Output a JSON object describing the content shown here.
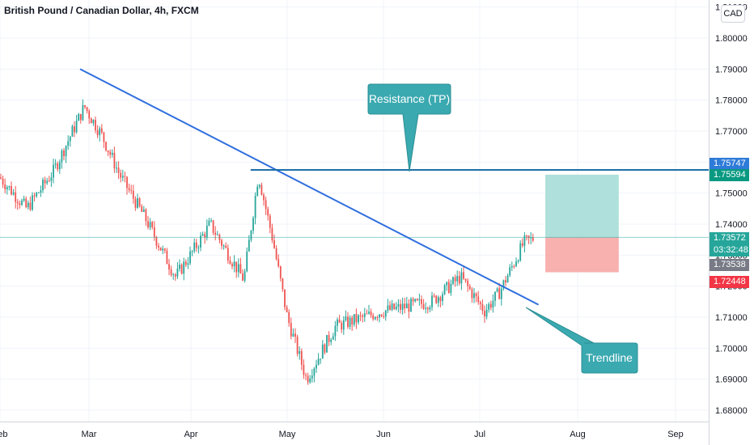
{
  "title": "British Pound / Canadian Dollar, 4h, FXCM",
  "currency": "CAD",
  "chart_data": {
    "type": "candlestick",
    "symbol": "British Pound / Canadian Dollar",
    "interval": "4h",
    "source": "FXCM",
    "y_ticks": [
      "1.68000",
      "1.69000",
      "1.70000",
      "1.71000",
      "1.72000",
      "1.73000",
      "1.74000",
      "1.75000",
      "1.76000",
      "1.77000",
      "1.78000",
      "1.79000",
      "1.80000",
      "1.81000"
    ],
    "x_ticks": [
      "Feb",
      "Mar",
      "Apr",
      "May",
      "Jun",
      "Jul",
      "Aug",
      "Sep"
    ],
    "ylim": [
      1.678,
      1.812
    ],
    "price_path": [
      {
        "x": 0.0,
        "y": 1.755
      },
      {
        "x": 0.3,
        "y": 1.745
      },
      {
        "x": 0.6,
        "y": 1.757
      },
      {
        "x": 0.95,
        "y": 1.778
      },
      {
        "x": 1.12,
        "y": 1.769
      },
      {
        "x": 1.3,
        "y": 1.756
      },
      {
        "x": 1.55,
        "y": 1.742
      },
      {
        "x": 1.85,
        "y": 1.723
      },
      {
        "x": 2.2,
        "y": 1.74
      },
      {
        "x": 2.55,
        "y": 1.722
      },
      {
        "x": 2.7,
        "y": 1.756
      },
      {
        "x": 2.85,
        "y": 1.735
      },
      {
        "x": 3.0,
        "y": 1.71
      },
      {
        "x": 3.2,
        "y": 1.69
      },
      {
        "x": 3.5,
        "y": 1.707
      },
      {
        "x": 4.0,
        "y": 1.712
      },
      {
        "x": 4.5,
        "y": 1.715
      },
      {
        "x": 4.8,
        "y": 1.723
      },
      {
        "x": 5.05,
        "y": 1.712
      },
      {
        "x": 5.2,
        "y": 1.718
      },
      {
        "x": 5.45,
        "y": 1.734
      },
      {
        "x": 5.55,
        "y": 1.7354
      }
    ],
    "trendline": {
      "label": "Trendline",
      "from": {
        "x": 0.9,
        "y": 1.79
      },
      "to": {
        "x": 5.6,
        "y": 1.714
      }
    },
    "resistance": {
      "label": "Resistance (TP)",
      "y": 1.75747
    },
    "position": {
      "entry": 1.73572,
      "target": 1.75594,
      "stop": 1.72448
    },
    "price_labels": [
      {
        "value": "1.75747",
        "color": "#2f7bd8"
      },
      {
        "value": "1.75594",
        "color": "#089981"
      },
      {
        "value": "1.73572",
        "color": "#26a69a"
      },
      {
        "value": "03:32:48",
        "color": "#26a69a"
      },
      {
        "value": "1.73538",
        "color": "#787b86"
      },
      {
        "value": "1.72448",
        "color": "#f23645"
      }
    ],
    "colors": {
      "up": "#26a69a",
      "down": "#ef5350",
      "line": "#2962ff",
      "resistance": "#1e6fa8",
      "callout": "#3aa9b0",
      "profit": "#a6ddd7",
      "loss": "#f7a9a6"
    }
  }
}
